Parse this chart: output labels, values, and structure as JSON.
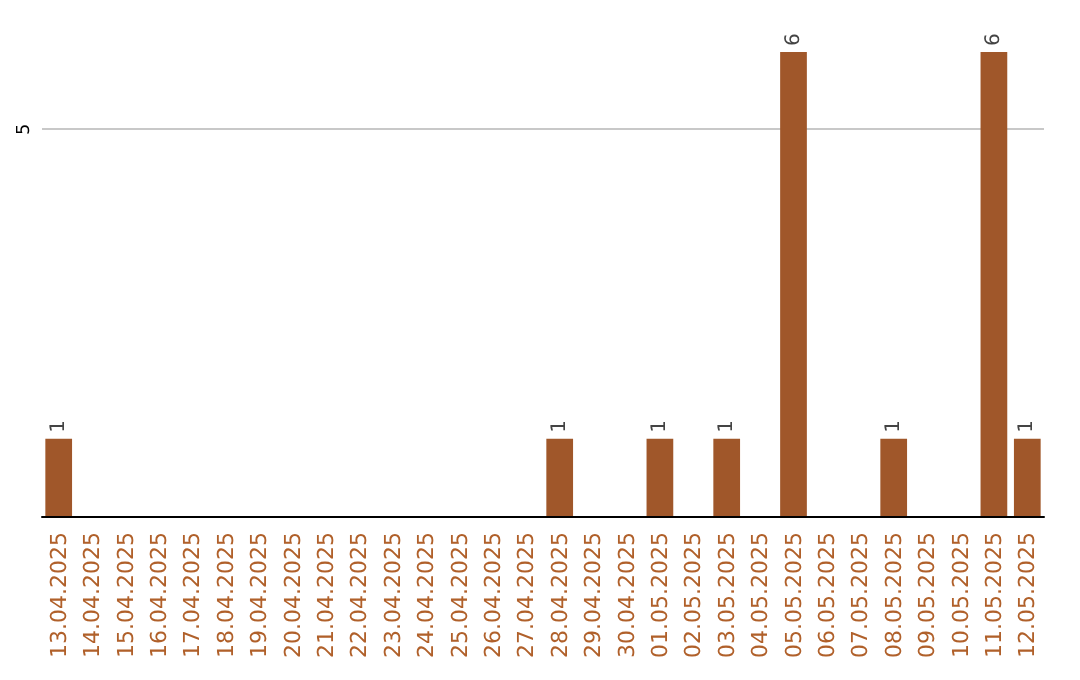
{
  "chart_data": {
    "type": "bar",
    "categories": [
      "13.04.2025",
      "14.04.2025",
      "15.04.2025",
      "16.04.2025",
      "17.04.2025",
      "18.04.2025",
      "19.04.2025",
      "20.04.2025",
      "21.04.2025",
      "22.04.2025",
      "23.04.2025",
      "24.04.2025",
      "25.04.2025",
      "26.04.2025",
      "27.04.2025",
      "28.04.2025",
      "29.04.2025",
      "30.04.2025",
      "01.05.2025",
      "02.05.2025",
      "03.05.2025",
      "04.05.2025",
      "05.05.2025",
      "06.05.2025",
      "07.05.2025",
      "08.05.2025",
      "09.05.2025",
      "10.05.2025",
      "11.05.2025",
      "12.05.2025"
    ],
    "values": [
      1,
      0,
      0,
      0,
      0,
      0,
      0,
      0,
      0,
      0,
      0,
      0,
      0,
      0,
      0,
      1,
      0,
      0,
      1,
      0,
      1,
      0,
      6,
      0,
      0,
      1,
      0,
      0,
      6,
      1
    ],
    "value_labels": [
      "1",
      null,
      null,
      null,
      null,
      null,
      null,
      null,
      null,
      null,
      null,
      null,
      null,
      null,
      null,
      "1",
      null,
      null,
      "1",
      null,
      "1",
      null,
      "6",
      null,
      null,
      "1",
      null,
      null,
      "6",
      "1"
    ],
    "color": "#a0572a",
    "ylim": [
      0,
      6
    ],
    "yticks": [
      5
    ],
    "grid": "y"
  }
}
